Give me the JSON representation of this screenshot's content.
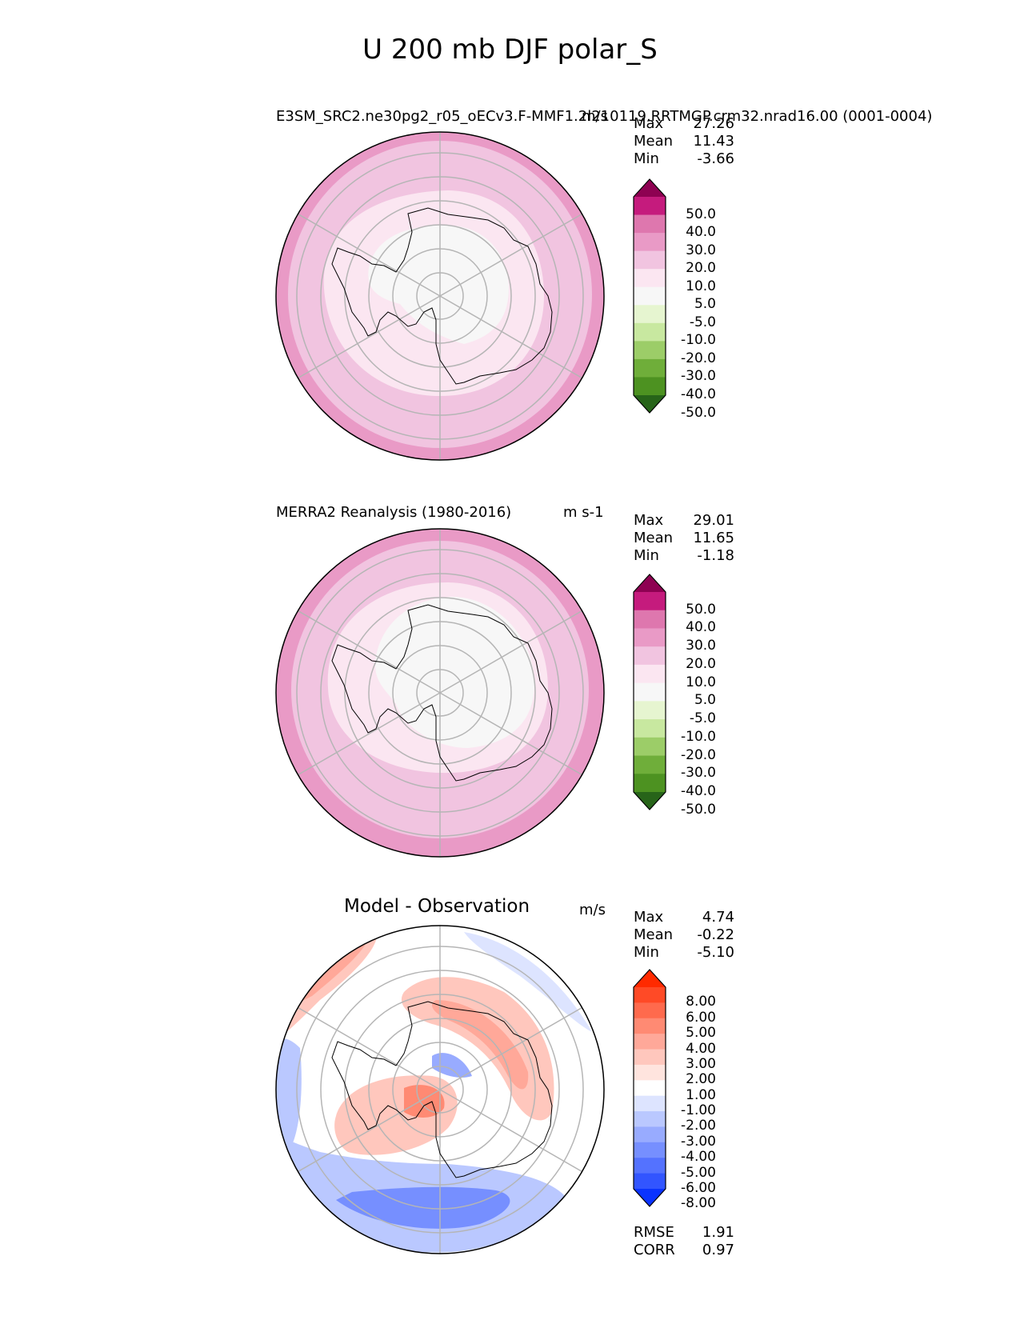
{
  "suptitle": "U 200 mb DJF polar_S",
  "panels": [
    {
      "title_left": "E3SM_SRC2.ne30pg2_r05_oECv3.F-MMF1.2l210119.RRTMGP.crm32.nrad16.00 (0001-0004)",
      "title_right": "m/s",
      "stats": [
        {
          "label": "Max",
          "value": "27.26"
        },
        {
          "label": "Mean",
          "value": "11.43"
        },
        {
          "label": "Min",
          "value": "-3.66"
        }
      ],
      "colorbar": {
        "labels": [
          "50.0",
          "40.0",
          "30.0",
          "20.0",
          "10.0",
          "5.0",
          "-5.0",
          "-10.0",
          "-20.0",
          "-30.0",
          "-40.0",
          "-50.0"
        ],
        "colors": [
          "#8e0152",
          "#c51b7d",
          "#de77ae",
          "#e99ac6",
          "#f1c4e0",
          "#fbe6f1",
          "#f7f7f7",
          "#e6f5d0",
          "#c8e8a0",
          "#9ccd68",
          "#6fae3a",
          "#4d9221",
          "#276419"
        ]
      }
    },
    {
      "title_left": "MERRA2 Reanalysis (1980-2016)",
      "title_right": "m s-1",
      "stats": [
        {
          "label": "Max",
          "value": "29.01"
        },
        {
          "label": "Mean",
          "value": "11.65"
        },
        {
          "label": "Min",
          "value": "-1.18"
        }
      ],
      "colorbar": {
        "labels": [
          "50.0",
          "40.0",
          "30.0",
          "20.0",
          "10.0",
          "5.0",
          "-5.0",
          "-10.0",
          "-20.0",
          "-30.0",
          "-40.0",
          "-50.0"
        ],
        "colors": [
          "#8e0152",
          "#c51b7d",
          "#de77ae",
          "#e99ac6",
          "#f1c4e0",
          "#fbe6f1",
          "#f7f7f7",
          "#e6f5d0",
          "#c8e8a0",
          "#9ccd68",
          "#6fae3a",
          "#4d9221",
          "#276419"
        ]
      }
    },
    {
      "title_left": "Model - Observation",
      "title_right": "m/s",
      "stats": [
        {
          "label": "Max",
          "value": "4.74"
        },
        {
          "label": "Mean",
          "value": "-0.22"
        },
        {
          "label": "Min",
          "value": "-5.10"
        }
      ],
      "bottom_stats": [
        {
          "label": "RMSE",
          "value": "1.91"
        },
        {
          "label": "CORR",
          "value": "0.97"
        }
      ],
      "colorbar": {
        "labels": [
          "8.00",
          "6.00",
          "5.00",
          "4.00",
          "3.00",
          "2.00",
          "1.00",
          "-1.00",
          "-2.00",
          "-3.00",
          "-4.00",
          "-5.00",
          "-6.00",
          "-8.00"
        ],
        "colors": [
          "#ff2a00",
          "#ff4a26",
          "#ff6a4d",
          "#ff8a73",
          "#ffa899",
          "#ffc7bd",
          "#ffe4de",
          "#ffffff",
          "#dde4ff",
          "#bac8ff",
          "#98abff",
          "#768fff",
          "#5472ff",
          "#3255ff",
          "#0a33ff"
        ]
      }
    }
  ],
  "chart_data": [
    {
      "type": "heatmap",
      "title": "E3SM_SRC2.ne30pg2_r05_oECv3.F-MMF1.2l210119.RRTMGP.crm32.nrad16.00 (0001-0004)",
      "variable": "U 200 mb DJF polar_S",
      "units": "m/s",
      "projection": "south polar stereographic",
      "levels": [
        -50,
        -40,
        -30,
        -20,
        -10,
        -5,
        5,
        10,
        20,
        30,
        40,
        50
      ],
      "stats": {
        "max": 27.26,
        "mean": 11.43,
        "min": -3.66
      }
    },
    {
      "type": "heatmap",
      "title": "MERRA2 Reanalysis (1980-2016)",
      "variable": "U 200 mb DJF polar_S",
      "units": "m s-1",
      "projection": "south polar stereographic",
      "levels": [
        -50,
        -40,
        -30,
        -20,
        -10,
        -5,
        5,
        10,
        20,
        30,
        40,
        50
      ],
      "stats": {
        "max": 29.01,
        "mean": 11.65,
        "min": -1.18
      }
    },
    {
      "type": "heatmap",
      "title": "Model - Observation",
      "variable": "U 200 mb DJF polar_S",
      "units": "m/s",
      "projection": "south polar stereographic",
      "levels": [
        -8,
        -6,
        -5,
        -4,
        -3,
        -2,
        -1,
        1,
        2,
        3,
        4,
        5,
        6,
        8
      ],
      "stats": {
        "max": 4.74,
        "mean": -0.22,
        "min": -5.1,
        "rmse": 1.91,
        "corr": 0.97
      }
    }
  ]
}
